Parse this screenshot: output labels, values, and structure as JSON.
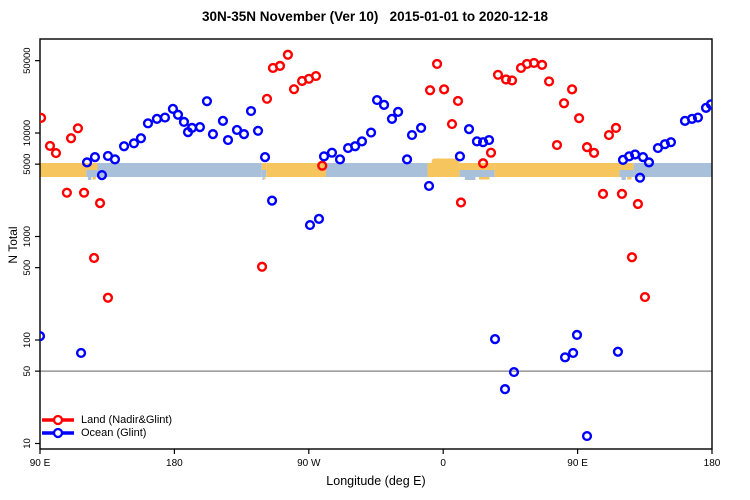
{
  "window": {
    "title": "30N-35N November (Ver 10)   2015-01-01 to 2020-12-18"
  },
  "chart_data": {
    "type": "scatter",
    "title": "30N-35N November (Ver 10)   2015-01-01 to 2020-12-18",
    "xlabel": "Longitude (deg E)",
    "ylabel": "N Total",
    "x_axis": {
      "min_deg": 90,
      "max_deg": 540,
      "ticks": [
        {
          "deg": 90,
          "label": "90 E"
        },
        {
          "deg": 180,
          "label": "180"
        },
        {
          "deg": 270,
          "label": "90 W"
        },
        {
          "deg": 360,
          "label": "0"
        },
        {
          "deg": 450,
          "label": "90 E"
        },
        {
          "deg": 540,
          "label": "180"
        }
      ]
    },
    "y_axis": {
      "scale": "log",
      "min": 8,
      "max": 65000,
      "ticks": [
        {
          "value": 10,
          "label": "10"
        },
        {
          "value": 50,
          "label": "50"
        },
        {
          "value": 100,
          "label": "100"
        },
        {
          "value": 500,
          "label": "500"
        },
        {
          "value": 1000,
          "label": "1000"
        },
        {
          "value": 5000,
          "label": "5000"
        },
        {
          "value": 10000,
          "label": "10000"
        },
        {
          "value": 50000,
          "label": "50000"
        }
      ]
    },
    "ref_line_value": 50,
    "band": {
      "note": "surface-type strip drawn across plot at ~N=4400",
      "segments": [
        {
          "surface": "land",
          "from": 90,
          "to": 121
        },
        {
          "surface": "mixed",
          "from": 121,
          "to": 128.5
        },
        {
          "surface": "ocean",
          "from": 128.5,
          "to": 238.5
        },
        {
          "surface": "mixed",
          "from": 238.5,
          "to": 241.5
        },
        {
          "surface": "land",
          "from": 241.5,
          "to": 281.5
        },
        {
          "surface": "ocean",
          "from": 281.5,
          "to": 349.5
        },
        {
          "surface": "land",
          "from": 349.5,
          "to": 371,
          "bulge": true
        },
        {
          "surface": "mixed",
          "from": 371,
          "to": 394.5
        },
        {
          "surface": "land",
          "from": 394.5,
          "to": 478
        },
        {
          "surface": "mixed",
          "from": 478,
          "to": 487.5
        },
        {
          "surface": "ocean",
          "from": 487.5,
          "to": 540
        }
      ]
    },
    "series": [
      {
        "name": "Land (Nadir&Glint)",
        "color": "#ff0000",
        "points": [
          [
            90.7,
            14000
          ],
          [
            96.7,
            7500
          ],
          [
            100.7,
            6400
          ],
          [
            108,
            2650
          ],
          [
            110.8,
            8900
          ],
          [
            115.4,
            11100
          ],
          [
            119.5,
            2650
          ],
          [
            126.2,
            620
          ],
          [
            130.2,
            2100
          ],
          [
            135.5,
            256
          ],
          [
            238.7,
            510
          ],
          [
            242,
            21400
          ],
          [
            246,
            42500
          ],
          [
            250.7,
            44500
          ],
          [
            256,
            57000
          ],
          [
            260.1,
            26500
          ],
          [
            265.5,
            31800
          ],
          [
            270.1,
            33400
          ],
          [
            274.8,
            35500
          ],
          [
            279,
            4830
          ],
          [
            351.2,
            25900
          ],
          [
            355.9,
            46500
          ],
          [
            360.6,
            26400
          ],
          [
            365.9,
            12200
          ],
          [
            369.9,
            20400
          ],
          [
            371.9,
            2130
          ],
          [
            386.7,
            5100
          ],
          [
            392,
            6450
          ],
          [
            396.7,
            36500
          ],
          [
            402.1,
            32900
          ],
          [
            406.1,
            32200
          ],
          [
            412.1,
            42500
          ],
          [
            416.1,
            46500
          ],
          [
            420.8,
            47500
          ],
          [
            426.2,
            45500
          ],
          [
            430.9,
            31500
          ],
          [
            436.2,
            7650
          ],
          [
            440.9,
            19400
          ],
          [
            446.3,
            26400
          ],
          [
            451,
            13900
          ],
          [
            456.3,
            7300
          ],
          [
            461,
            6430
          ],
          [
            467,
            2580
          ],
          [
            471,
            9550
          ],
          [
            475.7,
            11200
          ],
          [
            479.7,
            2580
          ],
          [
            486.4,
            630
          ],
          [
            490.4,
            2060
          ],
          [
            495.1,
            260
          ]
        ]
      },
      {
        "name": "Ocean (Glint)",
        "color": "#0000ff",
        "points": [
          [
            90,
            109
          ],
          [
            117.5,
            75
          ],
          [
            121.5,
            5200
          ],
          [
            126.8,
            5850
          ],
          [
            131.5,
            3920
          ],
          [
            135.5,
            6000
          ],
          [
            140.2,
            5560
          ],
          [
            146.3,
            7450
          ],
          [
            152.9,
            7950
          ],
          [
            157.6,
            8900
          ],
          [
            162.3,
            12400
          ],
          [
            168.3,
            13700
          ],
          [
            173.7,
            14100
          ],
          [
            179,
            17100
          ],
          [
            182.4,
            15000
          ],
          [
            186.4,
            12800
          ],
          [
            189.1,
            10200
          ],
          [
            191.8,
            11200
          ],
          [
            197.1,
            11400
          ],
          [
            201.8,
            20300
          ],
          [
            205.8,
            9750
          ],
          [
            212.5,
            13100
          ],
          [
            215.9,
            8550
          ],
          [
            221.9,
            10700
          ],
          [
            226.6,
            9750
          ],
          [
            231.3,
            16300
          ],
          [
            236,
            10500
          ],
          [
            240.7,
            5850
          ],
          [
            245.4,
            2220
          ],
          [
            270.8,
            1290
          ],
          [
            276.8,
            1480
          ],
          [
            280.2,
            5950
          ],
          [
            285.5,
            6450
          ],
          [
            290.9,
            5560
          ],
          [
            296.3,
            7150
          ],
          [
            301,
            7450
          ],
          [
            305.6,
            8300
          ],
          [
            311.7,
            10100
          ],
          [
            315.7,
            20800
          ],
          [
            320.4,
            18700
          ],
          [
            325.7,
            13700
          ],
          [
            329.8,
            16000
          ],
          [
            335.8,
            5560
          ],
          [
            339.1,
            9550
          ],
          [
            345.2,
            11200
          ],
          [
            350.5,
            3080
          ],
          [
            371.2,
            5950
          ],
          [
            377.3,
            10900
          ],
          [
            382.6,
            8300
          ],
          [
            386.7,
            8150
          ],
          [
            390.7,
            8550
          ],
          [
            394.7,
            102
          ],
          [
            401.4,
            33.5
          ],
          [
            407.4,
            49
          ],
          [
            441.6,
            68
          ],
          [
            447,
            75
          ],
          [
            449.6,
            112
          ],
          [
            456.3,
            11.8
          ],
          [
            477,
            77
          ],
          [
            480.4,
            5500
          ],
          [
            484.5,
            5950
          ],
          [
            488.5,
            6200
          ],
          [
            491.8,
            3700
          ],
          [
            493.8,
            5850
          ],
          [
            497.8,
            5200
          ],
          [
            503.8,
            7150
          ],
          [
            508.5,
            7800
          ],
          [
            512.5,
            8150
          ],
          [
            521.9,
            13100
          ],
          [
            526.6,
            13700
          ],
          [
            530.6,
            14100
          ],
          [
            536,
            17500
          ],
          [
            539.3,
            18900
          ]
        ]
      }
    ],
    "legend": {
      "position": "bottom-left",
      "items": [
        {
          "label": "Land (Nadir&Glint)",
          "color": "#ff0000"
        },
        {
          "label": "Ocean (Glint)",
          "color": "#0000ff"
        }
      ]
    },
    "colors": {
      "land_band": "#f6c55d",
      "ocean_band": "#a9c0da",
      "ref_line": "#808080",
      "frame": "#000000"
    }
  }
}
